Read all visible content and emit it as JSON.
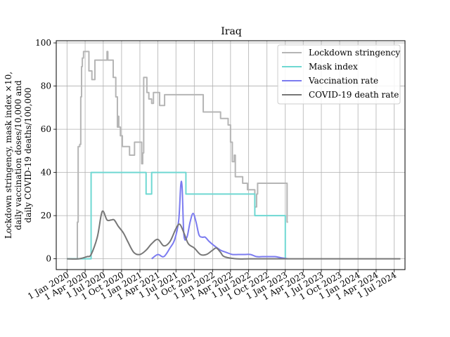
{
  "chart_data": {
    "type": "line",
    "title": "Iraq",
    "ylabel_lines": [
      "Lockdown stringency, mask index ×10,",
      "daily vaccination doses/10,000 and",
      "daily COVID-19 deaths/100,000"
    ],
    "xlabel": "",
    "grid": true,
    "legend_position": "top-right",
    "x_type": "date",
    "xlim": [
      "2019-11-08",
      "2024-08-24"
    ],
    "ylim": [
      -5,
      101
    ],
    "yticks": [
      0,
      20,
      40,
      60,
      80,
      100
    ],
    "xticks": [
      {
        "date": "2020-01-01",
        "label": "1 Jan 2020"
      },
      {
        "date": "2020-04-01",
        "label": "1 Apr 2020"
      },
      {
        "date": "2020-07-01",
        "label": "1 Jul 2020"
      },
      {
        "date": "2020-10-01",
        "label": "1 Oct 2020"
      },
      {
        "date": "2021-01-01",
        "label": "1 Jan 2021"
      },
      {
        "date": "2021-04-01",
        "label": "1 Apr 2021"
      },
      {
        "date": "2021-07-01",
        "label": "1 Jul 2021"
      },
      {
        "date": "2021-10-01",
        "label": "1 Oct 2021"
      },
      {
        "date": "2022-01-01",
        "label": "1 Jan 2022"
      },
      {
        "date": "2022-04-01",
        "label": "1 Apr 2022"
      },
      {
        "date": "2022-07-01",
        "label": "1 Jul 2022"
      },
      {
        "date": "2022-10-01",
        "label": "1 Oct 2022"
      },
      {
        "date": "2023-01-01",
        "label": "1 Jan 2023"
      },
      {
        "date": "2023-04-01",
        "label": "1 Apr 2023"
      },
      {
        "date": "2023-07-01",
        "label": "1 Jul 2023"
      },
      {
        "date": "2023-10-01",
        "label": "1 Oct 2023"
      },
      {
        "date": "2024-01-01",
        "label": "1 Jan 2024"
      },
      {
        "date": "2024-04-01",
        "label": "1 Apr 2024"
      },
      {
        "date": "2024-07-01",
        "label": "1 Jul 2024"
      }
    ],
    "series": [
      {
        "name": "Lockdown stringency",
        "color": "#b5b5b5",
        "step": true,
        "points": [
          [
            "2020-01-01",
            0
          ],
          [
            "2020-02-20",
            0
          ],
          [
            "2020-02-22",
            17
          ],
          [
            "2020-02-26",
            52
          ],
          [
            "2020-03-05",
            53
          ],
          [
            "2020-03-10",
            75
          ],
          [
            "2020-03-14",
            89
          ],
          [
            "2020-03-18",
            93
          ],
          [
            "2020-03-24",
            96
          ],
          [
            "2020-04-20",
            87
          ],
          [
            "2020-05-05",
            83
          ],
          [
            "2020-05-20",
            92
          ],
          [
            "2020-07-20",
            96
          ],
          [
            "2020-07-24",
            92
          ],
          [
            "2020-08-20",
            84
          ],
          [
            "2020-09-02",
            75
          ],
          [
            "2020-09-10",
            61
          ],
          [
            "2020-09-14",
            66
          ],
          [
            "2020-09-17",
            61
          ],
          [
            "2020-09-25",
            57
          ],
          [
            "2020-10-05",
            52
          ],
          [
            "2020-11-10",
            48
          ],
          [
            "2020-12-05",
            54
          ],
          [
            "2021-01-10",
            44
          ],
          [
            "2021-01-15",
            49
          ],
          [
            "2021-01-20",
            84
          ],
          [
            "2021-02-05",
            77
          ],
          [
            "2021-02-15",
            74
          ],
          [
            "2021-03-01",
            72
          ],
          [
            "2021-03-10",
            77
          ],
          [
            "2021-04-10",
            71
          ],
          [
            "2021-05-05",
            76
          ],
          [
            "2021-08-25",
            76
          ],
          [
            "2021-11-15",
            68
          ],
          [
            "2022-02-10",
            65
          ],
          [
            "2022-03-20",
            62
          ],
          [
            "2022-04-01",
            54
          ],
          [
            "2022-04-10",
            45
          ],
          [
            "2022-04-20",
            48
          ],
          [
            "2022-04-25",
            38
          ],
          [
            "2022-06-01",
            35
          ],
          [
            "2022-06-25",
            32
          ],
          [
            "2022-08-01",
            24
          ],
          [
            "2022-08-10",
            30
          ],
          [
            "2022-08-15",
            35
          ],
          [
            "2023-01-10",
            17
          ],
          [
            "2023-01-15",
            17
          ]
        ]
      },
      {
        "name": "Mask index",
        "color": "#6fd8d2",
        "step": true,
        "points": [
          [
            "2020-01-01",
            0
          ],
          [
            "2020-05-01",
            40
          ],
          [
            "2021-02-01",
            30
          ],
          [
            "2021-03-01",
            40
          ],
          [
            "2021-08-20",
            30
          ],
          [
            "2022-08-01",
            20
          ],
          [
            "2023-01-01",
            0
          ],
          [
            "2023-01-02",
            0
          ]
        ]
      },
      {
        "name": "Vaccination rate",
        "color": "#7b7bf0",
        "step": false,
        "points": [
          [
            "2021-03-01",
            0
          ],
          [
            "2021-04-01",
            2
          ],
          [
            "2021-05-01",
            1
          ],
          [
            "2021-06-01",
            5
          ],
          [
            "2021-06-25",
            9
          ],
          [
            "2021-07-15",
            18
          ],
          [
            "2021-07-25",
            34
          ],
          [
            "2021-08-01",
            33
          ],
          [
            "2021-08-10",
            11
          ],
          [
            "2021-08-25",
            10
          ],
          [
            "2021-09-10",
            17
          ],
          [
            "2021-09-25",
            21
          ],
          [
            "2021-10-10",
            17
          ],
          [
            "2021-10-25",
            11
          ],
          [
            "2021-11-10",
            10
          ],
          [
            "2021-11-25",
            10
          ],
          [
            "2021-12-15",
            8
          ],
          [
            "2022-01-10",
            6
          ],
          [
            "2022-02-10",
            4
          ],
          [
            "2022-03-10",
            3
          ],
          [
            "2022-04-10",
            2
          ],
          [
            "2022-05-10",
            2
          ],
          [
            "2022-06-10",
            2
          ],
          [
            "2022-07-10",
            2
          ],
          [
            "2022-08-10",
            1
          ],
          [
            "2022-09-10",
            1
          ],
          [
            "2022-10-10",
            1
          ],
          [
            "2022-11-10",
            1
          ],
          [
            "2022-12-10",
            0.5
          ],
          [
            "2023-01-15",
            0
          ]
        ]
      },
      {
        "name": "COVID-19 death rate",
        "color": "#777777",
        "step": false,
        "points": [
          [
            "2020-01-01",
            0
          ],
          [
            "2020-03-01",
            0
          ],
          [
            "2020-04-10",
            1
          ],
          [
            "2020-05-01",
            2
          ],
          [
            "2020-06-01",
            10
          ],
          [
            "2020-06-20",
            20
          ],
          [
            "2020-07-01",
            22
          ],
          [
            "2020-07-20",
            18
          ],
          [
            "2020-08-10",
            18
          ],
          [
            "2020-08-25",
            18
          ],
          [
            "2020-09-15",
            15
          ],
          [
            "2020-10-10",
            12
          ],
          [
            "2020-11-01",
            8
          ],
          [
            "2020-12-01",
            3
          ],
          [
            "2021-01-01",
            2
          ],
          [
            "2021-02-01",
            4
          ],
          [
            "2021-03-01",
            7
          ],
          [
            "2021-04-01",
            9
          ],
          [
            "2021-05-01",
            6
          ],
          [
            "2021-06-01",
            8
          ],
          [
            "2021-07-01",
            14
          ],
          [
            "2021-07-20",
            16
          ],
          [
            "2021-08-10",
            12
          ],
          [
            "2021-09-01",
            7
          ],
          [
            "2021-10-01",
            5
          ],
          [
            "2021-11-01",
            2
          ],
          [
            "2021-12-01",
            2
          ],
          [
            "2022-01-01",
            4
          ],
          [
            "2022-01-20",
            5
          ],
          [
            "2022-02-10",
            3
          ],
          [
            "2022-03-01",
            1
          ],
          [
            "2022-05-01",
            0
          ],
          [
            "2022-07-01",
            0
          ],
          [
            "2022-09-01",
            0
          ],
          [
            "2022-12-01",
            0
          ],
          [
            "2023-03-01",
            0
          ],
          [
            "2023-07-01",
            0
          ],
          [
            "2024-01-01",
            0
          ],
          [
            "2024-07-01",
            0
          ],
          [
            "2024-08-01",
            0
          ]
        ]
      }
    ]
  }
}
